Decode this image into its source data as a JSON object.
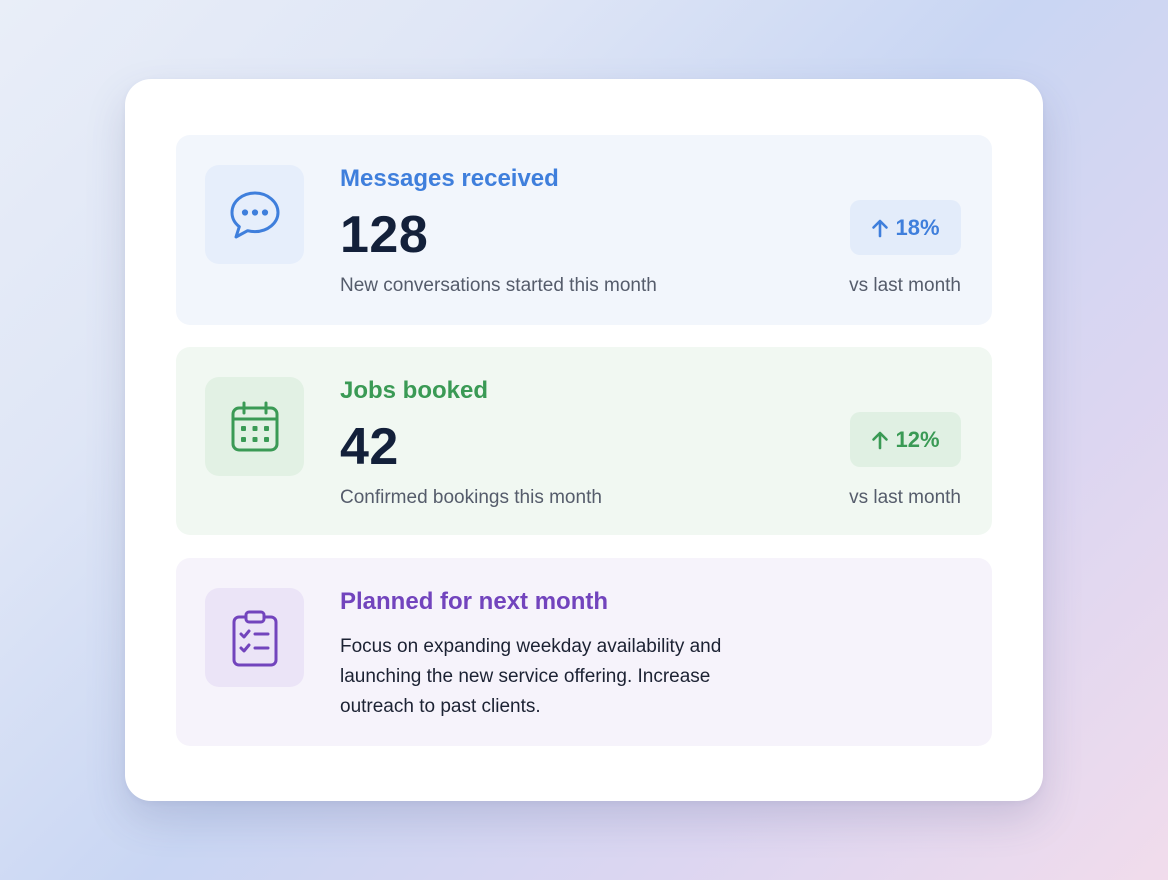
{
  "messages": {
    "icon": "chat-bubble-icon",
    "title": "Messages received",
    "value": "128",
    "description": "New conversations started this month",
    "change": "18%",
    "change_direction": "up",
    "comparison": "vs last month",
    "accent_color": "#3f7fdc"
  },
  "jobs": {
    "icon": "calendar-icon",
    "title": "Jobs booked",
    "value": "42",
    "description": "Confirmed bookings this month",
    "change": "12%",
    "change_direction": "up",
    "comparison": "vs last month",
    "accent_color": "#3a9a55"
  },
  "plan": {
    "icon": "clipboard-checklist-icon",
    "title": "Planned for next month",
    "text": "Focus on expanding weekday availability and launching the new service offering. Increase outreach to past clients.",
    "accent_color": "#7244bd"
  }
}
